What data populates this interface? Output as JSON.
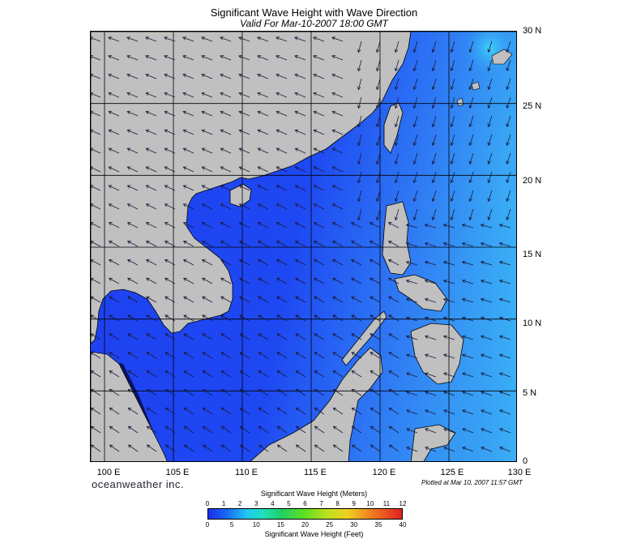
{
  "title": "Significant Wave Height with Wave Direction",
  "subtitle": "Valid For Mar-10-2007 18:00 GMT",
  "brand": "oceanweather inc.",
  "plotted": "Plotted at Mar 10, 2007 11:57 GMT",
  "latitude_labels": [
    "30 N",
    "25 N",
    "20 N",
    "15 N",
    "10 N",
    "5 N",
    "0"
  ],
  "longitude_labels": [
    "100 E",
    "105 E",
    "110 E",
    "115 E",
    "120 E",
    "125 E",
    "130 E"
  ],
  "map_extent": {
    "lon": [
      99,
      130
    ],
    "lat": [
      0,
      30
    ]
  },
  "colorbar": {
    "title_meters": "Significant Wave Height (Meters)",
    "title_feet": "Significant Wave Height (Feet)",
    "meter_ticks": [
      "0",
      "1",
      "2",
      "3",
      "4",
      "5",
      "6",
      "7",
      "8",
      "9",
      "10",
      "11",
      "12"
    ],
    "feet_ticks": [
      "0",
      "5",
      "10",
      "15",
      "20",
      "25",
      "30",
      "35",
      "40"
    ]
  },
  "colors": {
    "land": "#c0c0c0",
    "sea_low": "#1a3cf0",
    "sea_mid": "#2f6cf5",
    "sea_high": "#3cc4f5",
    "gulf_dark": "#0a1468",
    "grid": "#000000",
    "arrow": "#1a1a3a"
  },
  "wave_direction": "predominantly from the northeast toward the southwest"
}
